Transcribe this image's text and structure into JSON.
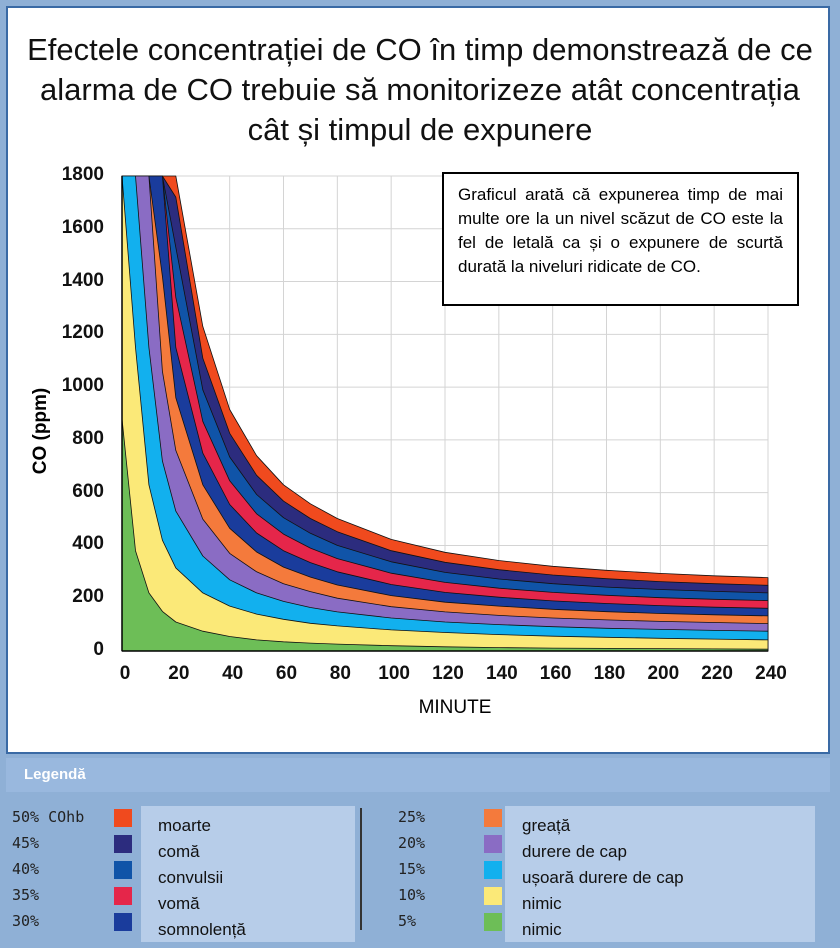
{
  "title": "Efectele concentrației de CO în timp demonstrează de ce alarma de CO trebuie să monitorizeze atât concentrația cât și timpul de expunere",
  "note": "Graficul arată că expunerea timp de mai multe ore la un nivel scăzut de CO este la fel de letală ca și o expunere de scurtă durată la niveluri ridicate de CO.",
  "legend": {
    "title": "Legendă",
    "items": [
      {
        "pct": "50% COhb",
        "label": "moarte",
        "color": "#f04a1e"
      },
      {
        "pct": "45%",
        "label": "comă",
        "color": "#2c2c7e"
      },
      {
        "pct": "40%",
        "label": "convulsii",
        "color": "#1054a8"
      },
      {
        "pct": "35%",
        "label": "vomă",
        "color": "#e5264a"
      },
      {
        "pct": "30%",
        "label": "somnolență",
        "color": "#1a3c9c"
      },
      {
        "pct": "25%",
        "label": "greață",
        "color": "#f47a3c"
      },
      {
        "pct": "20%",
        "label": "durere de cap",
        "color": "#8a6cc4"
      },
      {
        "pct": "15%",
        "label": "ușoară durere de cap",
        "color": "#12b0ee"
      },
      {
        "pct": "10%",
        "label": "nimic",
        "color": "#fbe978"
      },
      {
        "pct": "5%",
        "label": "nimic",
        "color": "#6dbe57"
      }
    ]
  },
  "chart_data": {
    "type": "area",
    "xlabel": "MINUTE",
    "ylabel": "CO (ppm)",
    "x_ticks": [
      0,
      20,
      40,
      60,
      80,
      100,
      120,
      140,
      160,
      180,
      200,
      220,
      240
    ],
    "y_ticks": [
      0,
      200,
      400,
      600,
      800,
      1000,
      1200,
      1400,
      1600,
      1800
    ],
    "xlim": [
      0,
      240
    ],
    "ylim": [
      0,
      1800
    ],
    "grid": true,
    "x": [
      0,
      5,
      10,
      15,
      20,
      30,
      40,
      50,
      60,
      70,
      80,
      100,
      120,
      140,
      160,
      180,
      200,
      220,
      240
    ],
    "series": [
      {
        "name": "5%",
        "color": "#6dbe57",
        "values": [
          880,
          380,
          220,
          150,
          110,
          75,
          55,
          42,
          35,
          30,
          26,
          20,
          16,
          13,
          11,
          10,
          9,
          8,
          7
        ]
      },
      {
        "name": "10%",
        "color": "#fbe978",
        "values": [
          1800,
          1150,
          630,
          420,
          315,
          220,
          170,
          140,
          120,
          105,
          95,
          80,
          70,
          62,
          56,
          52,
          48,
          45,
          42
        ]
      },
      {
        "name": "15%",
        "color": "#12b0ee",
        "values": [
          1800,
          1800,
          1150,
          720,
          530,
          360,
          270,
          220,
          188,
          165,
          148,
          125,
          110,
          100,
          92,
          86,
          82,
          78,
          75
        ]
      },
      {
        "name": "20%",
        "color": "#8a6cc4",
        "values": [
          1800,
          1800,
          1800,
          1060,
          760,
          500,
          370,
          300,
          255,
          225,
          200,
          168,
          148,
          135,
          125,
          118,
          112,
          108,
          104
        ]
      },
      {
        "name": "25%",
        "color": "#f47a3c",
        "values": [
          1800,
          1800,
          1800,
          1420,
          960,
          630,
          465,
          375,
          318,
          280,
          250,
          210,
          185,
          170,
          158,
          149,
          142,
          137,
          133
        ]
      },
      {
        "name": "30%",
        "color": "#1a3c9c",
        "values": [
          1800,
          1800,
          1800,
          1800,
          1150,
          750,
          555,
          447,
          380,
          335,
          300,
          252,
          222,
          204,
          190,
          180,
          172,
          166,
          162
        ]
      },
      {
        "name": "35%",
        "color": "#e5264a",
        "values": [
          1800,
          1800,
          1800,
          1800,
          1340,
          870,
          645,
          520,
          443,
          390,
          350,
          295,
          260,
          238,
          222,
          211,
          202,
          196,
          191
        ]
      },
      {
        "name": "40%",
        "color": "#1054a8",
        "values": [
          1800,
          1800,
          1800,
          1800,
          1530,
          990,
          735,
          593,
          505,
          446,
          400,
          338,
          298,
          273,
          255,
          242,
          233,
          226,
          220
        ]
      },
      {
        "name": "45%",
        "color": "#2c2c7e",
        "values": [
          1800,
          1800,
          1800,
          1800,
          1720,
          1110,
          825,
          666,
          568,
          502,
          452,
          380,
          336,
          308,
          288,
          274,
          263,
          255,
          249
        ]
      },
      {
        "name": "50% COhb",
        "color": "#f04a1e",
        "values": [
          1800,
          1800,
          1800,
          1800,
          1800,
          1230,
          915,
          740,
          630,
          558,
          502,
          423,
          374,
          343,
          321,
          306,
          294,
          285,
          278
        ]
      }
    ]
  }
}
